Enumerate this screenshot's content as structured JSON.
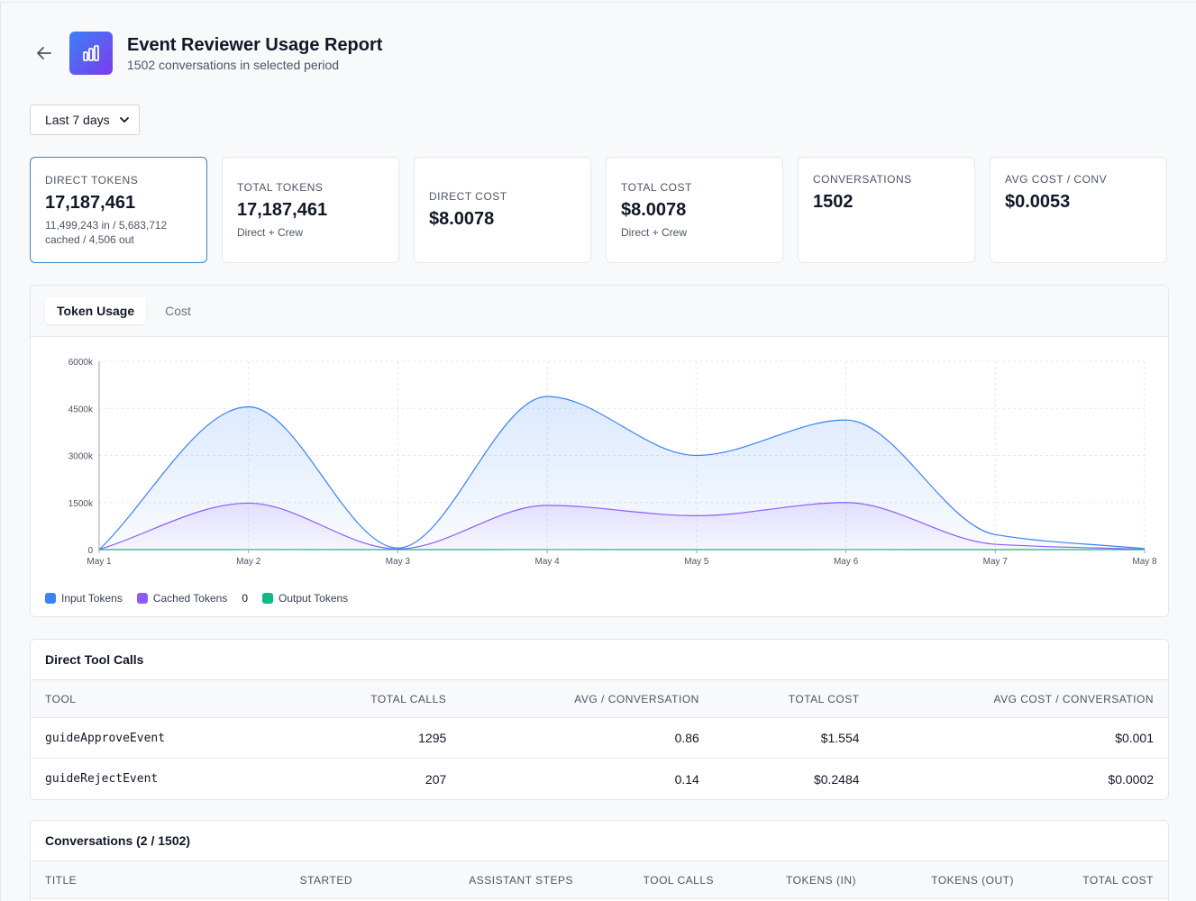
{
  "header": {
    "title": "Event Reviewer Usage Report",
    "subtitle": "1502 conversations in selected period"
  },
  "period_select": {
    "value": "Last 7 days"
  },
  "cards": [
    {
      "label": "Direct Tokens",
      "value": "17,187,461",
      "sub": "11,499,243 in / 5,683,712 cached / 4,506 out"
    },
    {
      "label": "Total Tokens",
      "value": "17,187,461",
      "sub": "Direct + Crew"
    },
    {
      "label": "Direct Cost",
      "value": "$8.0078",
      "sub": ""
    },
    {
      "label": "Total Cost",
      "value": "$8.0078",
      "sub": "Direct + Crew"
    },
    {
      "label": "Conversations",
      "value": "1502",
      "sub": ""
    },
    {
      "label": "Avg Cost / Conv",
      "value": "$0.0053",
      "sub": ""
    }
  ],
  "chart_tabs": [
    "Token Usage",
    "Cost"
  ],
  "chart_data": {
    "type": "area",
    "x": [
      "May 1",
      "May 2",
      "May 3",
      "May 4",
      "May 5",
      "May 6",
      "May 7",
      "May 8"
    ],
    "series": [
      {
        "name": "Input Tokens",
        "color": "#3b82f6",
        "values": [
          0,
          4550000,
          50000,
          4880000,
          3000000,
          4130000,
          480000,
          30000
        ]
      },
      {
        "name": "Cached Tokens",
        "color": "#8b5cf6",
        "values": [
          0,
          1480000,
          20000,
          1410000,
          1080000,
          1500000,
          170000,
          10000
        ]
      },
      {
        "name": "Output Tokens",
        "color": "#10b981",
        "values": [
          0,
          1200,
          100,
          1300,
          800,
          1100,
          100,
          0
        ]
      }
    ],
    "y_ticks": [
      "0",
      "1500k",
      "3000k",
      "4500k",
      "6000k"
    ],
    "ylim": [
      0,
      6000000
    ],
    "grid": true,
    "legend": "bottom-left",
    "legend_extra": "0"
  },
  "tool_calls": {
    "title": "Direct Tool Calls",
    "columns": [
      "Tool",
      "Total Calls",
      "Avg / Conversation",
      "Total Cost",
      "Avg Cost / Conversation"
    ],
    "rows": [
      [
        "guideApproveEvent",
        "1295",
        "0.86",
        "$1.554",
        "$0.001"
      ],
      [
        "guideRejectEvent",
        "207",
        "0.14",
        "$0.2484",
        "$0.0002"
      ]
    ]
  },
  "conversations": {
    "title": "Conversations (2 / 1502)",
    "columns": [
      "Title",
      "Started",
      "Assistant Steps",
      "Tool Calls",
      "Tokens (In)",
      "Tokens (Out)",
      "Total Cost"
    ]
  }
}
